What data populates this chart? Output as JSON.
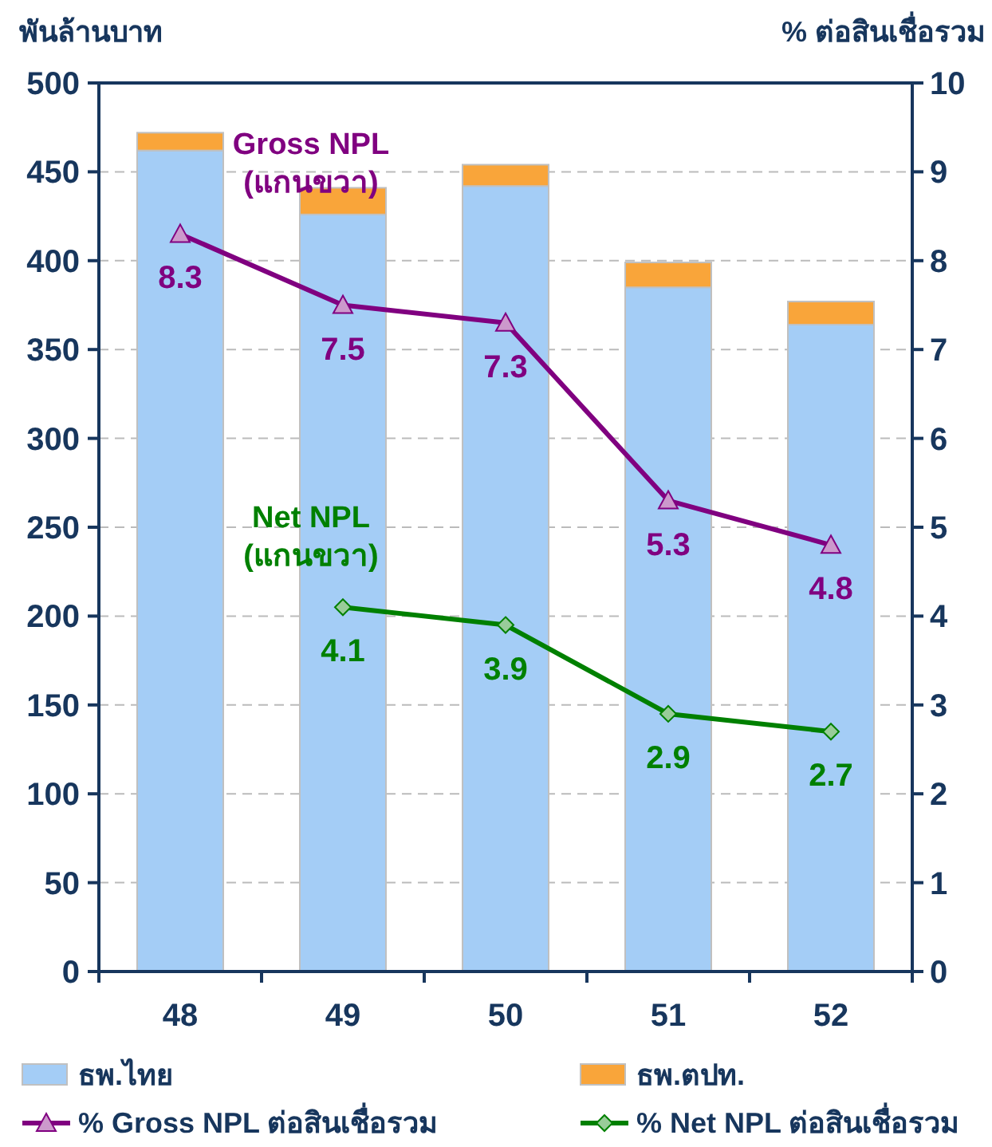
{
  "chart_data": {
    "type": "bar",
    "stacked": true,
    "ylabel": "พันล้านบาท",
    "y2label": "% ต่อสินเชื่อรวม",
    "categories": [
      "48",
      "49",
      "50",
      "51",
      "52"
    ],
    "series": [
      {
        "name": "ธพ.ไทย",
        "color": "#a4cdf6",
        "values": [
          462,
          426,
          442,
          385,
          364
        ]
      },
      {
        "name": "ธพ.ตปท.",
        "color": "#f9a53a",
        "values": [
          10,
          15,
          12,
          14,
          13
        ]
      },
      {
        "name": "% Gross NPL ต่อสินเชื่อรวม",
        "type": "line",
        "axis": "y2",
        "color": "#800080",
        "marker": "triangle",
        "values": [
          8.3,
          7.5,
          7.3,
          5.3,
          4.8
        ],
        "value_labels": [
          "8.3",
          "7.5",
          "7.3",
          "5.3",
          "4.8"
        ]
      },
      {
        "name": "% Net NPL ต่อสินเชื่อรวม",
        "type": "line",
        "axis": "y2",
        "color": "#008000",
        "marker": "diamond",
        "values": [
          null,
          4.1,
          3.9,
          2.9,
          2.7
        ],
        "value_labels": [
          null,
          "4.1",
          "3.9",
          "2.9",
          "2.7"
        ]
      }
    ],
    "ylim": [
      0,
      500
    ],
    "yticks": [
      0,
      50,
      100,
      150,
      200,
      250,
      300,
      350,
      400,
      450,
      500
    ],
    "y2lim": [
      0,
      10
    ],
    "y2ticks": [
      0,
      1,
      2,
      3,
      4,
      5,
      6,
      7,
      8,
      9,
      10
    ],
    "grid": "y",
    "legend": "bottom",
    "annotations": [
      "Gross NPL\n(แกนขวา)",
      "Net NPL\n(แกนขวา)"
    ]
  }
}
